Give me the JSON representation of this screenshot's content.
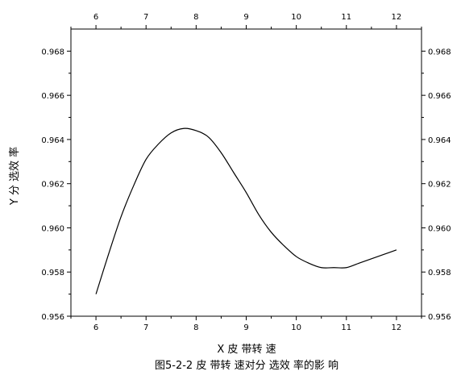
{
  "chart_data": {
    "type": "line",
    "xlabel": "X 皮 带转 速",
    "ylabel": "Y 分 选效 率",
    "caption": "图5-2-2 皮 带转 速对分 选效 率的影 响",
    "xlim": [
      5.5,
      12.5
    ],
    "ylim": [
      0.956,
      0.969
    ],
    "x_ticks": [
      "6",
      "7",
      "8",
      "9",
      "10",
      "11",
      "12"
    ],
    "y_ticks": [
      "0.956",
      "0.958",
      "0.960",
      "0.962",
      "0.964",
      "0.966",
      "0.968"
    ],
    "grid": false,
    "series": [
      {
        "x": [
          6.0,
          6.25,
          6.5,
          6.75,
          7.0,
          7.25,
          7.5,
          7.75,
          8.0,
          8.25,
          8.5,
          8.75,
          9.0,
          9.25,
          9.5,
          9.75,
          10.0,
          10.25,
          10.5,
          10.75,
          11.0,
          11.25,
          11.5,
          11.75,
          12.0
        ],
        "y": [
          0.957,
          0.9588,
          0.9605,
          0.9619,
          0.9631,
          0.9638,
          0.9643,
          0.9645,
          0.9644,
          0.9641,
          0.9634,
          0.9625,
          0.9616,
          0.9606,
          0.9598,
          0.9592,
          0.9587,
          0.9584,
          0.9582,
          0.9582,
          0.9582,
          0.9584,
          0.9586,
          0.9588,
          0.959
        ]
      }
    ]
  }
}
